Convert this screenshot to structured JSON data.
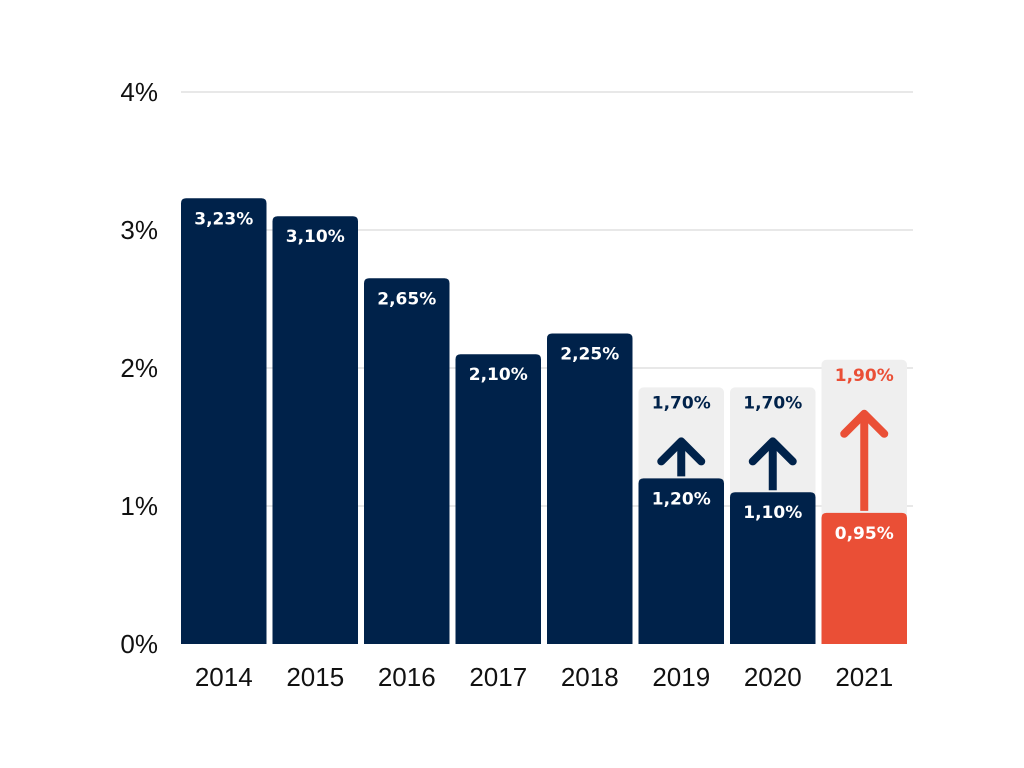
{
  "chart_data": {
    "type": "bar",
    "title": "",
    "xlabel": "",
    "ylabel": "",
    "ylim": [
      0,
      4
    ],
    "y_ticks": [
      "0%",
      "1%",
      "2%",
      "3%",
      "4%"
    ],
    "grid": true,
    "categories": [
      "2014",
      "2015",
      "2016",
      "2017",
      "2018",
      "2019",
      "2020",
      "2021"
    ],
    "series": [
      {
        "values": [
          3.23,
          3.1,
          2.65,
          2.1,
          2.25,
          1.2,
          1.1,
          0.95
        ],
        "labels": [
          "3,23%",
          "3,10%",
          "2,65%",
          "2,10%",
          "2,25%",
          "1,20%",
          "1,10%",
          "0,95%"
        ]
      },
      {
        "values": [
          null,
          null,
          null,
          null,
          null,
          1.7,
          1.7,
          1.9
        ],
        "labels": [
          "",
          "",
          "",
          "",
          "",
          "1,70%",
          "1,70%",
          "1,90%"
        ]
      }
    ],
    "bar_colors": [
      "#00224a",
      "#00224a",
      "#00224a",
      "#00224a",
      "#00224a",
      "#00224a",
      "#00224a",
      "#ea4f36"
    ],
    "target_background": "#efefef",
    "arrow_colors": [
      "",
      "",
      "",
      "",
      "",
      "#00224a",
      "#00224a",
      "#ea4f36"
    ],
    "colors": {
      "primary": "#00224a",
      "highlight": "#ea4f36",
      "gridline": "#d9d9d9",
      "text": "#111111",
      "value_label_inside": "#ffffff"
    }
  }
}
